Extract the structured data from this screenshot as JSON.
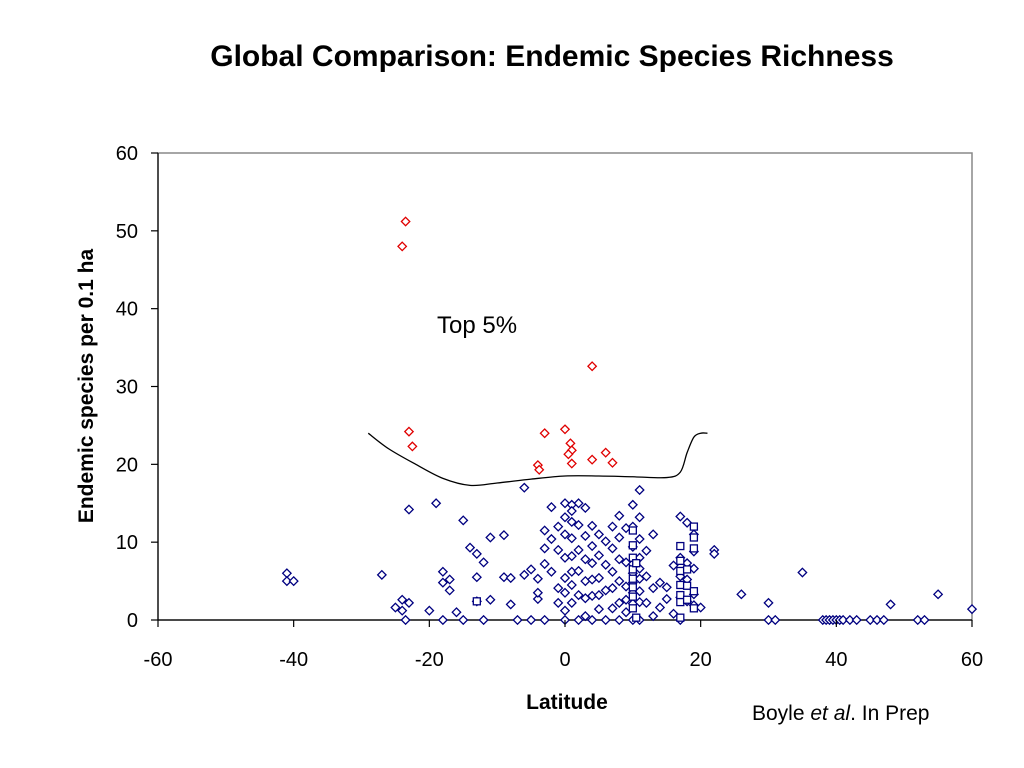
{
  "chart_data": {
    "type": "scatter",
    "title": "Global Comparison: Endemic Species Richness",
    "xlabel": "Latitude",
    "ylabel": "Endemic species per 0.1 ha",
    "xlim": [
      -60,
      60
    ],
    "ylim": [
      0,
      60
    ],
    "x_ticks": [
      "-60",
      "-40",
      "-20",
      "0",
      "20",
      "40",
      "60"
    ],
    "y_ticks": [
      "0",
      "10",
      "20",
      "30",
      "40",
      "50",
      "60"
    ],
    "grid": false,
    "legend": "none",
    "annotation": "Top 5%",
    "colors": {
      "top": "#e00000",
      "main": "#000080",
      "frame": "#888888"
    },
    "threshold_curve": [
      [
        -29,
        24
      ],
      [
        -26,
        22
      ],
      [
        -22,
        20
      ],
      [
        -18,
        18.2
      ],
      [
        -14,
        17.3
      ],
      [
        -10,
        17.6
      ],
      [
        -5,
        18.1
      ],
      [
        0,
        18.5
      ],
      [
        5,
        18.5
      ],
      [
        10,
        18.4
      ],
      [
        15,
        18.3
      ],
      [
        17,
        19
      ],
      [
        18,
        21.5
      ],
      [
        19,
        23.5
      ],
      [
        20,
        24
      ],
      [
        21,
        24
      ]
    ],
    "series": [
      {
        "marker": "diamond",
        "color": "#e00000",
        "points": [
          [
            -23.5,
            51.2
          ],
          [
            -24,
            48
          ],
          [
            -23,
            24.2
          ],
          [
            -22.5,
            22.3
          ],
          [
            4,
            32.6
          ],
          [
            -3,
            24
          ],
          [
            0,
            24.5
          ],
          [
            0.8,
            22.7
          ],
          [
            1,
            21.8
          ],
          [
            0.5,
            21.3
          ],
          [
            6,
            21.5
          ],
          [
            4,
            20.6
          ],
          [
            7,
            20.2
          ],
          [
            1,
            20.1
          ],
          [
            -4,
            19.9
          ],
          [
            -3.8,
            19.3
          ]
        ]
      },
      {
        "marker": "diamond",
        "color": "#000080",
        "points": [
          [
            -41,
            6
          ],
          [
            -41,
            5
          ],
          [
            -40,
            5
          ],
          [
            -27,
            5.8
          ],
          [
            -24,
            2.6
          ],
          [
            -24,
            1.2
          ],
          [
            -25,
            1.6
          ],
          [
            -23,
            2.2
          ],
          [
            -23,
            14.2
          ],
          [
            -23.5,
            0
          ],
          [
            -19,
            15
          ],
          [
            -18,
            6.2
          ],
          [
            -17,
            5.2
          ],
          [
            -18,
            4.8
          ],
          [
            -17,
            3.8
          ],
          [
            -20,
            1.2
          ],
          [
            -18,
            0
          ],
          [
            -16,
            1
          ],
          [
            -15,
            12.8
          ],
          [
            -15,
            0
          ],
          [
            -14,
            9.3
          ],
          [
            -13,
            8.5
          ],
          [
            -13,
            5.5
          ],
          [
            -12,
            7.4
          ],
          [
            -13,
            2.4
          ],
          [
            -11,
            2.6
          ],
          [
            -12,
            0
          ],
          [
            -11,
            10.6
          ],
          [
            -9,
            10.9
          ],
          [
            -9,
            5.5
          ],
          [
            -8,
            5.4
          ],
          [
            -8,
            2
          ],
          [
            -7,
            0
          ],
          [
            -6,
            17
          ],
          [
            -6,
            5.8
          ],
          [
            -5,
            6.5
          ],
          [
            -4,
            5.3
          ],
          [
            -4,
            2.7
          ],
          [
            -5,
            0
          ],
          [
            -3,
            11.5
          ],
          [
            -3,
            9.2
          ],
          [
            -3,
            7.2
          ],
          [
            -4,
            3.5
          ],
          [
            -3,
            0
          ],
          [
            -2,
            14.5
          ],
          [
            -2,
            10.4
          ],
          [
            -1,
            12
          ],
          [
            -1,
            9
          ],
          [
            -2,
            6.2
          ],
          [
            -1,
            4.1
          ],
          [
            -1,
            2.2
          ],
          [
            0,
            15
          ],
          [
            0,
            13.2
          ],
          [
            0,
            11
          ],
          [
            0,
            8
          ],
          [
            0,
            5.4
          ],
          [
            0,
            3.5
          ],
          [
            0,
            1.2
          ],
          [
            0,
            0
          ],
          [
            1,
            14.8
          ],
          [
            1,
            14
          ],
          [
            1,
            12.6
          ],
          [
            1,
            10.5
          ],
          [
            1,
            8.2
          ],
          [
            1,
            6.2
          ],
          [
            1,
            4.5
          ],
          [
            1,
            2.2
          ],
          [
            2,
            15
          ],
          [
            2,
            12.2
          ],
          [
            2,
            9
          ],
          [
            2,
            6.3
          ],
          [
            2,
            3.2
          ],
          [
            2,
            0
          ],
          [
            3,
            14.4
          ],
          [
            3,
            10.8
          ],
          [
            3,
            7.8
          ],
          [
            3,
            5
          ],
          [
            3,
            2.8
          ],
          [
            3,
            0.5
          ],
          [
            4,
            12.1
          ],
          [
            4,
            9.5
          ],
          [
            4,
            7.3
          ],
          [
            4,
            5.2
          ],
          [
            4,
            3.1
          ],
          [
            4,
            0
          ],
          [
            5,
            11
          ],
          [
            5,
            8.3
          ],
          [
            5,
            5.4
          ],
          [
            5,
            3.2
          ],
          [
            5,
            1.4
          ],
          [
            6,
            10.1
          ],
          [
            6,
            7.1
          ],
          [
            6,
            3.8
          ],
          [
            6,
            0
          ],
          [
            7,
            12
          ],
          [
            7,
            9.2
          ],
          [
            7,
            6.2
          ],
          [
            7,
            4.1
          ],
          [
            7,
            1.5
          ],
          [
            8,
            13.4
          ],
          [
            8,
            10.6
          ],
          [
            8,
            7.8
          ],
          [
            8,
            5
          ],
          [
            8,
            2.2
          ],
          [
            8,
            0
          ],
          [
            9,
            11.8
          ],
          [
            9,
            7.4
          ],
          [
            9,
            4.3
          ],
          [
            9,
            2.6
          ],
          [
            9,
            1
          ],
          [
            10,
            14.8
          ],
          [
            10,
            12
          ],
          [
            10,
            9.4
          ],
          [
            10,
            7.2
          ],
          [
            10,
            6
          ],
          [
            10,
            4.8
          ],
          [
            10,
            3.5
          ],
          [
            10,
            2.1
          ],
          [
            10,
            0
          ],
          [
            11,
            16.7
          ],
          [
            11,
            13.2
          ],
          [
            11,
            10.4
          ],
          [
            11,
            8
          ],
          [
            11,
            6.6
          ],
          [
            11,
            5.3
          ],
          [
            11,
            3.7
          ],
          [
            11,
            2.3
          ],
          [
            11,
            0
          ],
          [
            12,
            8.9
          ],
          [
            12,
            5.6
          ],
          [
            12,
            2.2
          ],
          [
            13,
            11
          ],
          [
            13,
            4.1
          ],
          [
            13,
            0.5
          ],
          [
            14,
            4.8
          ],
          [
            14,
            1.6
          ],
          [
            15,
            4.2
          ],
          [
            15,
            2.7
          ],
          [
            16,
            7
          ],
          [
            16,
            0.8
          ],
          [
            17,
            13.3
          ],
          [
            17,
            8
          ],
          [
            17,
            5.6
          ],
          [
            17,
            2.9
          ],
          [
            17,
            0
          ],
          [
            18,
            12.5
          ],
          [
            18,
            7.3
          ],
          [
            18,
            5.2
          ],
          [
            18,
            2.4
          ],
          [
            19,
            11
          ],
          [
            19,
            8.8
          ],
          [
            19,
            6.6
          ],
          [
            19,
            3.3
          ],
          [
            19,
            1.9
          ],
          [
            20,
            1.6
          ],
          [
            22,
            9
          ],
          [
            22,
            8.5
          ],
          [
            26,
            3.3
          ],
          [
            30,
            2.2
          ],
          [
            30,
            0
          ],
          [
            31,
            0
          ],
          [
            35,
            6.1
          ],
          [
            38,
            0
          ],
          [
            38.5,
            0
          ],
          [
            39,
            0
          ],
          [
            39.5,
            0
          ],
          [
            40,
            0
          ],
          [
            40.5,
            0
          ],
          [
            41,
            0
          ],
          [
            42,
            0
          ],
          [
            43,
            0
          ],
          [
            45,
            0
          ],
          [
            46,
            0
          ],
          [
            47,
            0
          ],
          [
            48,
            2
          ],
          [
            52,
            0
          ],
          [
            53,
            0
          ],
          [
            55,
            3.3
          ],
          [
            60,
            1.4
          ]
        ]
      },
      {
        "marker": "square",
        "color": "#000080",
        "points": [
          [
            -13,
            2.4
          ],
          [
            10,
            11.5
          ],
          [
            10,
            9.6
          ],
          [
            10,
            8
          ],
          [
            10,
            6.5
          ],
          [
            10,
            5.3
          ],
          [
            10,
            4.2
          ],
          [
            10,
            3
          ],
          [
            10,
            1.5
          ],
          [
            10.5,
            7.3
          ],
          [
            10.5,
            0.3
          ],
          [
            17,
            9.5
          ],
          [
            17,
            7.6
          ],
          [
            17,
            6.3
          ],
          [
            17,
            4.5
          ],
          [
            17,
            3.2
          ],
          [
            17,
            2.3
          ],
          [
            17,
            0.3
          ],
          [
            18,
            6.5
          ],
          [
            18,
            4.4
          ],
          [
            18,
            2.6
          ],
          [
            19,
            12
          ],
          [
            19,
            10.6
          ],
          [
            19,
            9.2
          ],
          [
            19,
            3.7
          ],
          [
            19,
            1.5
          ]
        ]
      }
    ]
  },
  "credit": {
    "author": "Boyle",
    "etal": "et al",
    "rest": ". In Prep"
  }
}
